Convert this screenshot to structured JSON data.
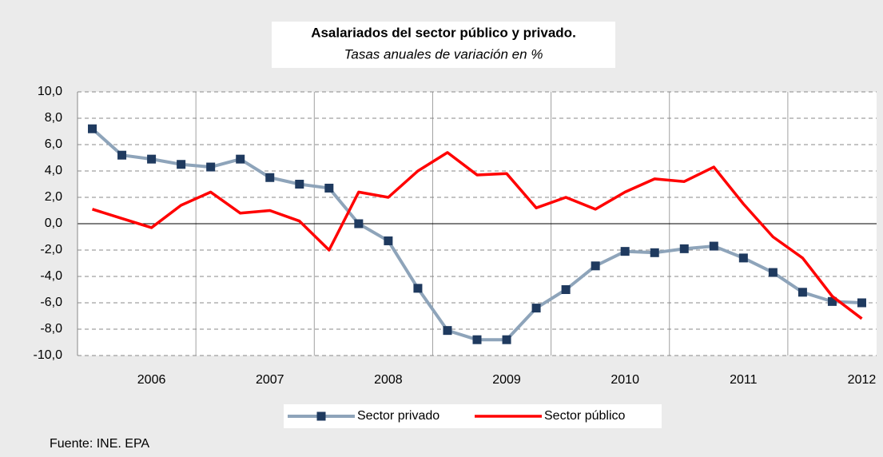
{
  "chart_data": {
    "type": "line",
    "title": "Asalariados del sector público y privado.",
    "subtitle": "Tasas anuales de variación en %",
    "source": "Fuente: INE. EPA",
    "categories": [
      null,
      null,
      "2006",
      null,
      null,
      null,
      "2007",
      null,
      null,
      null,
      "2008",
      null,
      null,
      null,
      "2009",
      null,
      null,
      null,
      "2010",
      null,
      null,
      null,
      "2011",
      null,
      null,
      null,
      "2012"
    ],
    "series": [
      {
        "name": "Sector privado",
        "color": "#8ea4ba",
        "marker_color": "#1f3a5f",
        "values": [
          7.2,
          5.2,
          4.9,
          4.5,
          4.3,
          4.9,
          3.5,
          3.0,
          2.7,
          0.0,
          -1.3,
          -4.9,
          -8.1,
          -8.8,
          -8.8,
          -6.4,
          -5.0,
          -3.2,
          -2.1,
          -2.2,
          -1.9,
          -1.7,
          -2.6,
          -3.7,
          -5.2,
          -5.9,
          -6.0
        ]
      },
      {
        "name": "Sector público",
        "color": "#ff0000",
        "values": [
          1.1,
          0.4,
          -0.3,
          1.4,
          2.4,
          0.8,
          1.0,
          0.2,
          -2.0,
          2.4,
          2.0,
          4.0,
          5.4,
          3.7,
          3.8,
          1.2,
          2.0,
          1.1,
          2.4,
          3.4,
          3.2,
          4.3,
          1.5,
          -1.0,
          -2.6,
          -5.5,
          -7.2
        ]
      }
    ],
    "ylim": [
      -10,
      10
    ],
    "yticks": [
      {
        "value": -10,
        "label": "-10,0"
      },
      {
        "value": -8,
        "label": "-8,0"
      },
      {
        "value": -6,
        "label": "-6,0"
      },
      {
        "value": -4,
        "label": "-4,0"
      },
      {
        "value": -2,
        "label": "-2,0"
      },
      {
        "value": 0,
        "label": "0,0"
      },
      {
        "value": 2,
        "label": "2,0"
      },
      {
        "value": 4,
        "label": "4,0"
      },
      {
        "value": 6,
        "label": "6,0"
      },
      {
        "value": 8,
        "label": "8,0"
      },
      {
        "value": 10,
        "label": "10,0"
      }
    ],
    "grid": true,
    "legend": "bottom"
  }
}
